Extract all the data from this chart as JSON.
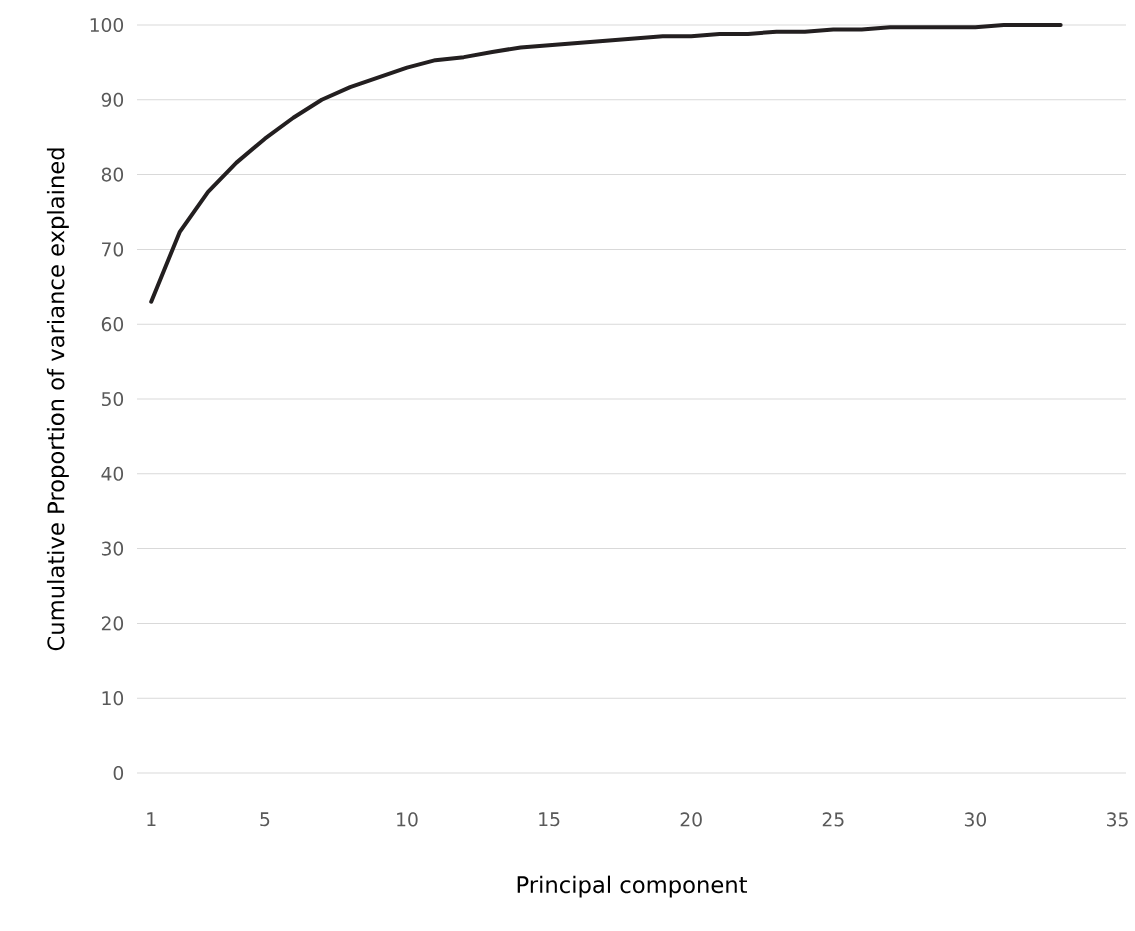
{
  "chart_data": {
    "type": "line",
    "xlabel": "Principal component",
    "ylabel": "Cumulative Proportion of variance explained",
    "x": [
      1,
      2,
      3,
      4,
      5,
      6,
      7,
      8,
      9,
      10,
      11,
      12,
      13,
      14,
      15,
      16,
      17,
      18,
      19,
      20,
      21,
      22,
      23,
      24,
      25,
      26,
      27,
      28,
      29,
      30,
      31,
      32,
      33
    ],
    "series": [
      {
        "color": "#231f20",
        "values": [
          63.0,
          72.3,
          77.7,
          81.6,
          84.8,
          87.6,
          90.0,
          91.7,
          93.0,
          94.3,
          95.3,
          95.7,
          96.4,
          97.0,
          97.3,
          97.6,
          97.9,
          98.2,
          98.5,
          98.5,
          98.8,
          98.8,
          99.1,
          99.1,
          99.4,
          99.4,
          99.7,
          99.7,
          99.7,
          99.7,
          100,
          100,
          100
        ]
      }
    ],
    "xlim": [
      0.5,
      35.3
    ],
    "ylim": [
      0,
      100
    ],
    "xticks": [
      1,
      5,
      10,
      15,
      20,
      25,
      30,
      35
    ],
    "yticks": [
      0,
      10,
      20,
      30,
      40,
      50,
      60,
      70,
      80,
      90,
      100
    ],
    "grid": "y",
    "marker": "none",
    "line_style": "solid"
  }
}
